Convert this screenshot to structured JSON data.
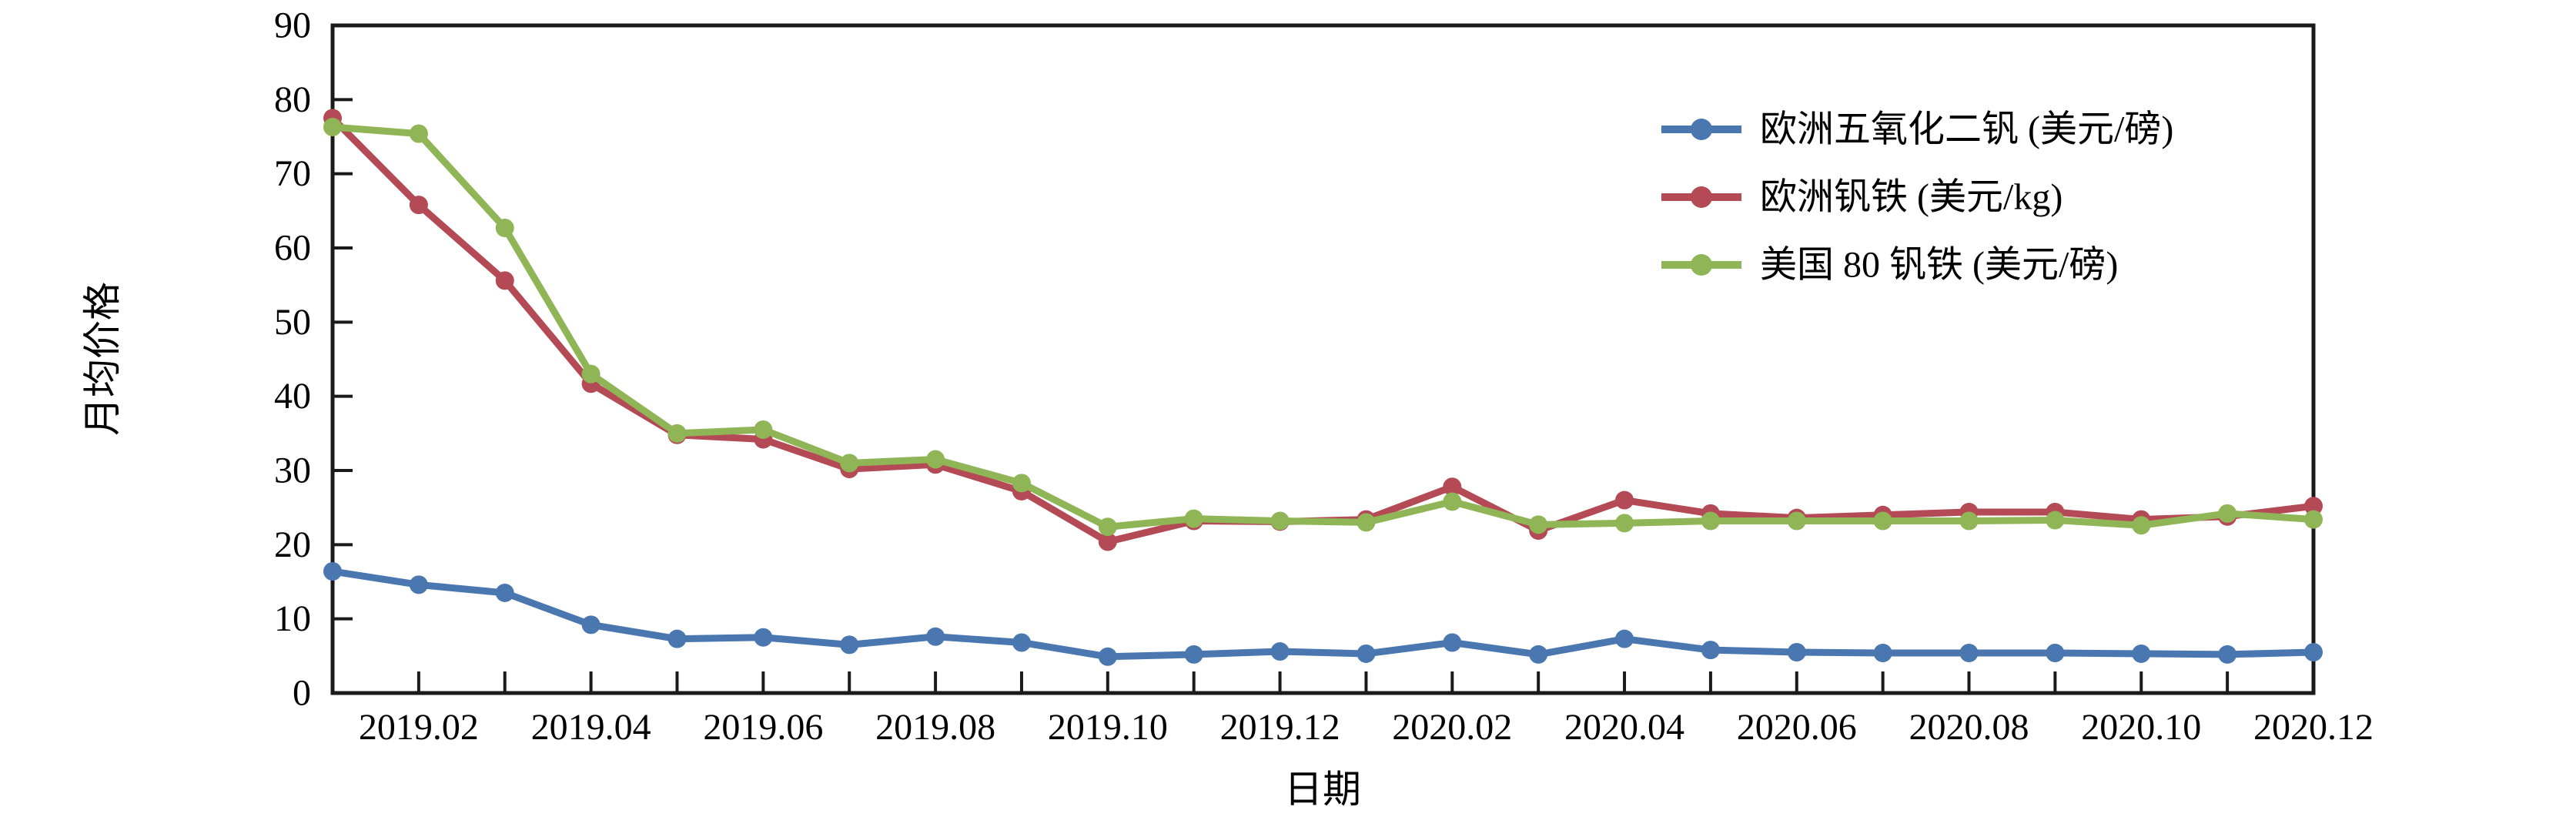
{
  "chart_data": {
    "type": "line",
    "title": "",
    "xlabel": "日期",
    "ylabel": "月均价格",
    "ylim": [
      0,
      90
    ],
    "ytick_step": 10,
    "grid": false,
    "plot_border": "box",
    "tick_direction": "in",
    "legend_position": "top-right-inside",
    "axis_color": "#1a1a1a",
    "text_color": "#000000",
    "x": [
      "2019.01",
      "2019.02",
      "2019.03",
      "2019.04",
      "2019.05",
      "2019.06",
      "2019.07",
      "2019.08",
      "2019.09",
      "2019.10",
      "2019.11",
      "2019.12",
      "2020.01",
      "2020.02",
      "2020.03",
      "2020.04",
      "2020.05",
      "2020.06",
      "2020.07",
      "2020.08",
      "2020.09",
      "2020.10",
      "2020.11",
      "2020.12"
    ],
    "x_tick_labels": [
      "2019.02",
      "2019.04",
      "2019.06",
      "2019.08",
      "2019.10",
      "2019.12",
      "2020.02",
      "2020.04",
      "2020.06",
      "2020.08",
      "2020.10",
      "2020.12"
    ],
    "series": [
      {
        "name": "欧洲五氧化二钒 (美元/磅)",
        "color": "#4a77b0",
        "marker": "circle",
        "values": [
          16.4,
          14.6,
          13.5,
          9.2,
          7.3,
          7.5,
          6.5,
          7.6,
          6.8,
          4.9,
          5.2,
          5.6,
          5.3,
          6.8,
          5.2,
          7.3,
          5.8,
          5.5,
          5.4,
          5.4,
          5.4,
          5.3,
          5.2,
          5.5
        ]
      },
      {
        "name": "欧洲钒铁 (美元/kg)",
        "color": "#b34a55",
        "marker": "circle",
        "values": [
          77.5,
          65.8,
          55.6,
          41.7,
          34.8,
          34.2,
          30.2,
          30.8,
          27.2,
          20.4,
          23.2,
          23.1,
          23.4,
          27.8,
          21.9,
          26.0,
          24.2,
          23.6,
          24.0,
          24.4,
          24.4,
          23.4,
          23.8,
          25.2
        ]
      },
      {
        "name": "美国 80 钒铁 (美元/磅)",
        "color": "#90b556",
        "marker": "circle",
        "values": [
          76.3,
          75.4,
          62.7,
          43.0,
          35.0,
          35.5,
          31.0,
          31.5,
          28.3,
          22.4,
          23.5,
          23.2,
          23.0,
          25.8,
          22.7,
          22.9,
          23.2,
          23.2,
          23.2,
          23.2,
          23.3,
          22.6,
          24.2,
          23.4
        ]
      }
    ]
  }
}
